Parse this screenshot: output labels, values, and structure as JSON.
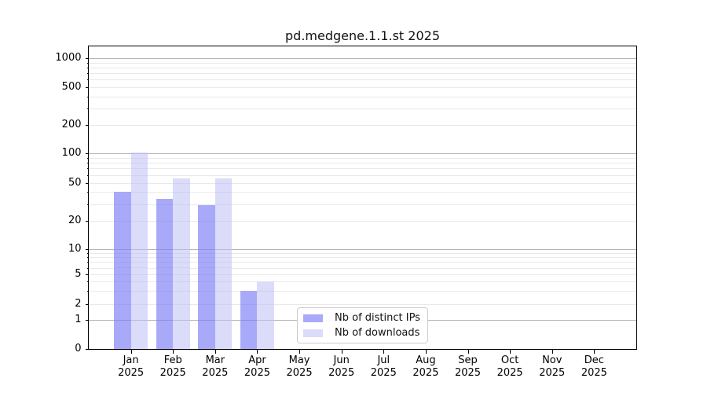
{
  "title": "pd.medgene.1.1.st 2025",
  "chart_data": {
    "type": "bar",
    "title": "pd.medgene.1.1.st 2025",
    "categories": [
      "Jan",
      "Feb",
      "Mar",
      "Apr",
      "May",
      "Jun",
      "Jul",
      "Aug",
      "Sep",
      "Oct",
      "Nov",
      "Dec"
    ],
    "x_tick_year": "2025",
    "series": [
      {
        "name": "Nb of distinct IPs",
        "color": "#a9a9f9",
        "values": [
          40,
          34,
          29,
          3,
          0,
          0,
          0,
          0,
          0,
          0,
          0,
          0
        ]
      },
      {
        "name": "Nb of downloads",
        "color": "#dbdbfa",
        "values": [
          102,
          56,
          56,
          4,
          0,
          0,
          0,
          0,
          0,
          0,
          0,
          0
        ]
      }
    ],
    "y_axis": {
      "scale": "symlog",
      "ticks": [
        0,
        1,
        2,
        5,
        10,
        20,
        50,
        100,
        200,
        500,
        1000
      ],
      "range": [
        0,
        1300
      ]
    },
    "xlabel": "",
    "ylabel": "",
    "grid": "horizontal major and log-minor gridlines",
    "legend_position": "lower center"
  },
  "colors": {
    "background": "#ffffff",
    "axis": "#000000",
    "major_grid": "#b5b5b5",
    "minor_grid": "#e9e9e9",
    "bar_distinct_ips": "#a9a9f9",
    "bar_downloads": "#dbdbfa"
  }
}
